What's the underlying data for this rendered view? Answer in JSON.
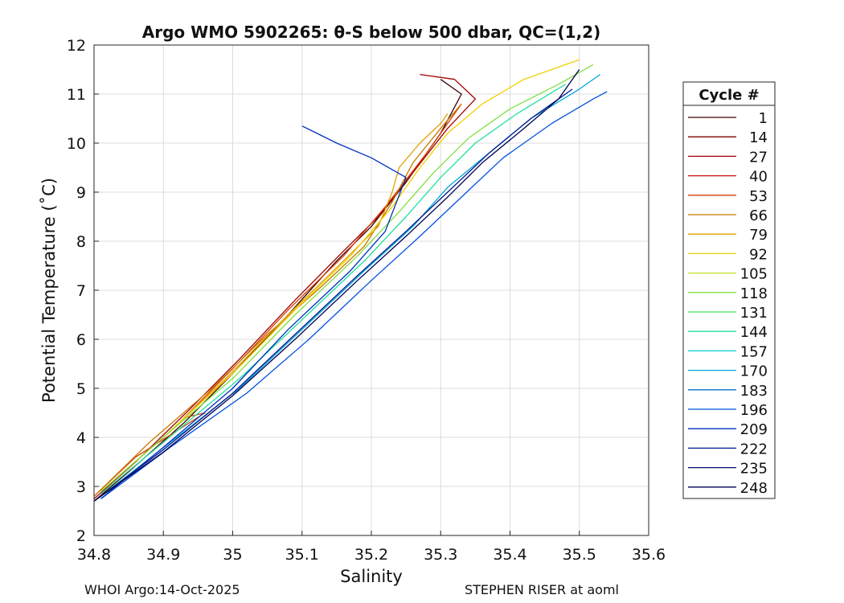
{
  "chart_data": {
    "type": "line",
    "title": "Argo WMO 5902265: θ-S below 500 dbar,  QC=(1,2)",
    "xlabel": "Salinity",
    "ylabel": "Potential Temperature (˚C)",
    "xlim": [
      34.8,
      35.6
    ],
    "ylim": [
      2,
      12
    ],
    "xticks": [
      "34.8",
      "34.9",
      "35",
      "35.1",
      "35.2",
      "35.3",
      "35.4",
      "35.5",
      "35.6"
    ],
    "yticks": [
      "2",
      "3",
      "4",
      "5",
      "6",
      "7",
      "8",
      "9",
      "10",
      "11",
      "12"
    ],
    "grid": true,
    "legend": {
      "title": "Cycle #",
      "placement": "outside-right",
      "entries": [
        {
          "label": "1",
          "color": "#3a0000"
        },
        {
          "label": "14",
          "color": "#7f0000"
        },
        {
          "label": "27",
          "color": "#a30000"
        },
        {
          "label": "40",
          "color": "#c81010"
        },
        {
          "label": "53",
          "color": "#d93d00"
        },
        {
          "label": "66",
          "color": "#c87800"
        },
        {
          "label": "79",
          "color": "#e0a000"
        },
        {
          "label": "92",
          "color": "#f0d000"
        },
        {
          "label": "105",
          "color": "#c8e020"
        },
        {
          "label": "118",
          "color": "#80e040"
        },
        {
          "label": "131",
          "color": "#40e060"
        },
        {
          "label": "144",
          "color": "#20e0a0"
        },
        {
          "label": "157",
          "color": "#00d0d0"
        },
        {
          "label": "170",
          "color": "#00a8d8"
        },
        {
          "label": "183",
          "color": "#0070c8"
        },
        {
          "label": "196",
          "color": "#0050e0"
        },
        {
          "label": "209",
          "color": "#0030c0"
        },
        {
          "label": "222",
          "color": "#001890"
        },
        {
          "label": "235",
          "color": "#000a70"
        },
        {
          "label": "248",
          "color": "#000050"
        }
      ]
    },
    "series": [
      {
        "name": "1",
        "x": [
          34.8,
          34.85,
          34.93,
          35.0,
          35.08,
          35.15,
          35.2,
          35.25,
          35.3,
          35.33,
          35.3
        ],
        "y": [
          2.7,
          3.3,
          4.3,
          5.3,
          6.5,
          7.6,
          8.3,
          9.2,
          10.2,
          11.0,
          11.3
        ]
      },
      {
        "name": "27",
        "x": [
          34.8,
          34.86,
          34.94,
          35.01,
          35.09,
          35.16,
          35.21,
          35.26,
          35.31,
          35.35,
          35.32,
          35.27
        ],
        "y": [
          2.75,
          3.5,
          4.6,
          5.6,
          6.8,
          7.8,
          8.5,
          9.4,
          10.3,
          10.9,
          11.3,
          11.4
        ]
      },
      {
        "name": "53",
        "x": [
          34.8,
          34.86,
          34.96,
          34.93,
          35.0,
          35.08,
          35.16,
          35.22,
          35.28,
          35.33
        ],
        "y": [
          2.8,
          3.6,
          4.5,
          4.4,
          5.4,
          6.6,
          7.7,
          8.7,
          9.8,
          10.8
        ]
      },
      {
        "name": "66",
        "x": [
          34.8,
          34.88,
          34.97,
          35.05,
          35.13,
          35.19,
          35.23,
          35.26,
          35.3,
          35.33
        ],
        "y": [
          2.8,
          3.9,
          5.0,
          6.1,
          7.1,
          7.9,
          8.8,
          9.6,
          10.3,
          10.8
        ]
      },
      {
        "name": "79",
        "x": [
          34.81,
          34.9,
          34.99,
          35.08,
          35.16,
          35.21,
          35.23,
          35.24,
          35.27,
          35.3,
          35.31
        ],
        "y": [
          2.9,
          4.0,
          5.2,
          6.5,
          7.6,
          8.3,
          9.0,
          9.5,
          10.0,
          10.4,
          10.6
        ]
      },
      {
        "name": "92",
        "x": [
          34.81,
          34.9,
          35.0,
          35.09,
          35.17,
          35.23,
          35.27,
          35.31,
          35.36,
          35.42,
          35.5
        ],
        "y": [
          2.9,
          4.0,
          5.3,
          6.6,
          7.7,
          8.7,
          9.5,
          10.2,
          10.8,
          11.3,
          11.7
        ]
      },
      {
        "name": "118",
        "x": [
          34.81,
          34.9,
          35.0,
          35.09,
          35.18,
          35.24,
          35.29,
          35.34,
          35.4,
          35.47,
          35.52
        ],
        "y": [
          2.9,
          4.0,
          5.2,
          6.5,
          7.7,
          8.6,
          9.4,
          10.1,
          10.7,
          11.2,
          11.6
        ]
      },
      {
        "name": "144",
        "x": [
          34.81,
          34.9,
          35.01,
          35.1,
          35.19,
          35.25,
          35.3,
          35.35,
          35.41,
          35.48
        ],
        "y": [
          2.85,
          3.9,
          5.2,
          6.4,
          7.6,
          8.5,
          9.3,
          10.0,
          10.6,
          11.2
        ]
      },
      {
        "name": "170",
        "x": [
          34.81,
          34.91,
          35.01,
          35.1,
          35.19,
          35.26,
          35.31,
          35.37,
          35.43,
          35.5,
          35.53
        ],
        "y": [
          2.8,
          3.9,
          5.0,
          6.2,
          7.4,
          8.3,
          9.1,
          9.8,
          10.5,
          11.1,
          11.4
        ]
      },
      {
        "name": "196",
        "x": [
          34.81,
          34.91,
          35.02,
          35.11,
          35.2,
          35.27,
          35.33,
          35.39,
          35.46,
          35.52,
          35.54
        ],
        "y": [
          2.75,
          3.8,
          4.9,
          6.0,
          7.2,
          8.1,
          8.9,
          9.7,
          10.4,
          10.9,
          11.05
        ]
      },
      {
        "name": "209",
        "x": [
          34.81,
          34.9,
          35.0,
          35.08,
          35.17,
          35.22,
          35.25,
          35.2,
          35.15,
          35.1
        ],
        "y": [
          2.75,
          3.8,
          5.0,
          6.2,
          7.4,
          8.2,
          9.3,
          9.7,
          10.0,
          10.35
        ]
      },
      {
        "name": "222",
        "x": [
          34.8,
          34.9,
          35.0,
          35.09,
          35.18,
          35.25,
          35.31,
          35.37,
          35.43,
          35.49
        ],
        "y": [
          2.7,
          3.75,
          4.9,
          6.1,
          7.3,
          8.2,
          9.0,
          9.8,
          10.5,
          11.1
        ]
      },
      {
        "name": "248",
        "x": [
          34.8,
          34.9,
          35.0,
          35.09,
          35.18,
          35.25,
          35.31,
          35.36,
          35.42,
          35.47,
          35.5
        ],
        "y": [
          2.7,
          3.7,
          4.85,
          6.0,
          7.2,
          8.1,
          8.9,
          9.6,
          10.3,
          10.9,
          11.5
        ]
      }
    ]
  },
  "footer": {
    "left": "WHOI Argo:14-Oct-2025",
    "right": "STEPHEN RISER at aoml"
  }
}
